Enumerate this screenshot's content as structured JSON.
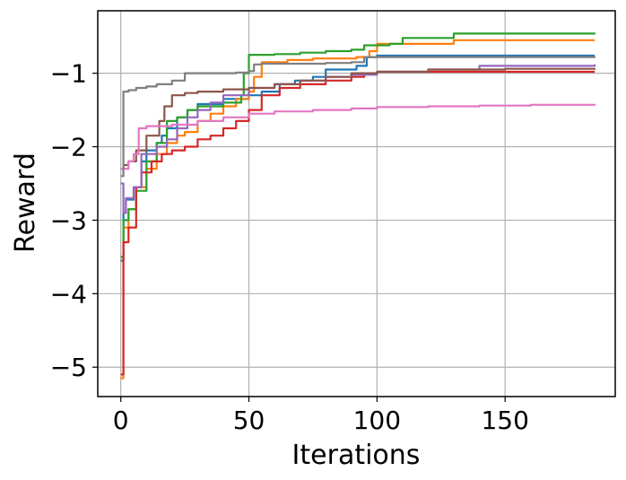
{
  "chart_data": {
    "type": "line",
    "title": "",
    "xlabel": "Iterations",
    "ylabel": "Reward",
    "xlim": [
      -9,
      193
    ],
    "ylim": [
      -5.4,
      -0.15
    ],
    "x_ticks": [
      0,
      50,
      100,
      150
    ],
    "x_tick_labels": [
      "0",
      "50",
      "100",
      "150"
    ],
    "y_ticks": [
      -5,
      -4,
      -3,
      -2,
      -1
    ],
    "y_tick_labels": [
      "−5",
      "−4",
      "−3",
      "−2",
      "−1"
    ],
    "grid": true,
    "series": [
      {
        "color": "#1f77b4",
        "points": [
          [
            0,
            -3.55
          ],
          [
            1,
            -2.9
          ],
          [
            2,
            -2.72
          ],
          [
            5,
            -2.55
          ],
          [
            8,
            -2.2
          ],
          [
            10,
            -2.05
          ],
          [
            14,
            -1.95
          ],
          [
            16,
            -1.85
          ],
          [
            18,
            -1.75
          ],
          [
            22,
            -1.6
          ],
          [
            26,
            -1.5
          ],
          [
            30,
            -1.42
          ],
          [
            40,
            -1.35
          ],
          [
            50,
            -1.3
          ],
          [
            55,
            -1.25
          ],
          [
            62,
            -1.15
          ],
          [
            68,
            -1.1
          ],
          [
            75,
            -1.05
          ],
          [
            80,
            -0.95
          ],
          [
            92,
            -0.9
          ],
          [
            96,
            -0.78
          ],
          [
            100,
            -0.76
          ],
          [
            185,
            -0.76
          ]
        ]
      },
      {
        "color": "#ff7f0e",
        "points": [
          [
            0,
            -5.15
          ],
          [
            1,
            -3.1
          ],
          [
            3,
            -2.85
          ],
          [
            6,
            -2.55
          ],
          [
            10,
            -2.3
          ],
          [
            14,
            -2.1
          ],
          [
            18,
            -1.95
          ],
          [
            22,
            -1.85
          ],
          [
            25,
            -1.8
          ],
          [
            30,
            -1.65
          ],
          [
            35,
            -1.55
          ],
          [
            40,
            -1.45
          ],
          [
            45,
            -1.35
          ],
          [
            50,
            -1.25
          ],
          [
            52,
            -1.05
          ],
          [
            55,
            -0.85
          ],
          [
            65,
            -0.82
          ],
          [
            75,
            -0.8
          ],
          [
            85,
            -0.8
          ],
          [
            92,
            -0.78
          ],
          [
            97,
            -0.7
          ],
          [
            100,
            -0.6
          ],
          [
            120,
            -0.6
          ],
          [
            130,
            -0.55
          ],
          [
            185,
            -0.55
          ]
        ]
      },
      {
        "color": "#2ca02c",
        "points": [
          [
            0,
            -3.5
          ],
          [
            1,
            -3.0
          ],
          [
            3,
            -2.85
          ],
          [
            6,
            -2.6
          ],
          [
            10,
            -2.2
          ],
          [
            14,
            -1.95
          ],
          [
            18,
            -1.65
          ],
          [
            22,
            -1.6
          ],
          [
            26,
            -1.5
          ],
          [
            30,
            -1.45
          ],
          [
            40,
            -1.4
          ],
          [
            47,
            -1.3
          ],
          [
            48,
            -1.0
          ],
          [
            50,
            -0.75
          ],
          [
            60,
            -0.74
          ],
          [
            70,
            -0.72
          ],
          [
            80,
            -0.7
          ],
          [
            90,
            -0.68
          ],
          [
            95,
            -0.62
          ],
          [
            105,
            -0.6
          ],
          [
            110,
            -0.52
          ],
          [
            130,
            -0.46
          ],
          [
            185,
            -0.45
          ]
        ]
      },
      {
        "color": "#d62728",
        "points": [
          [
            0,
            -5.1
          ],
          [
            1,
            -3.3
          ],
          [
            3,
            -3.1
          ],
          [
            6,
            -2.55
          ],
          [
            8,
            -2.35
          ],
          [
            12,
            -2.2
          ],
          [
            16,
            -2.1
          ],
          [
            20,
            -2.05
          ],
          [
            25,
            -2.0
          ],
          [
            30,
            -1.9
          ],
          [
            35,
            -1.85
          ],
          [
            40,
            -1.75
          ],
          [
            45,
            -1.65
          ],
          [
            50,
            -1.5
          ],
          [
            55,
            -1.3
          ],
          [
            62,
            -1.2
          ],
          [
            70,
            -1.15
          ],
          [
            80,
            -1.1
          ],
          [
            90,
            -1.05
          ],
          [
            95,
            -1.0
          ],
          [
            100,
            -0.98
          ],
          [
            185,
            -0.98
          ]
        ]
      },
      {
        "color": "#9467bd",
        "points": [
          [
            0,
            -2.5
          ],
          [
            1,
            -2.9
          ],
          [
            2,
            -2.7
          ],
          [
            5,
            -2.55
          ],
          [
            8,
            -2.1
          ],
          [
            14,
            -2.0
          ],
          [
            18,
            -1.9
          ],
          [
            22,
            -1.75
          ],
          [
            26,
            -1.6
          ],
          [
            30,
            -1.5
          ],
          [
            35,
            -1.4
          ],
          [
            40,
            -1.3
          ],
          [
            50,
            -1.2
          ],
          [
            60,
            -1.15
          ],
          [
            70,
            -1.1
          ],
          [
            80,
            -1.05
          ],
          [
            90,
            -1.02
          ],
          [
            100,
            -0.98
          ],
          [
            120,
            -0.95
          ],
          [
            140,
            -0.9
          ],
          [
            185,
            -0.88
          ]
        ]
      },
      {
        "color": "#8c564b",
        "points": [
          [
            0,
            -2.3
          ],
          [
            1,
            -2.25
          ],
          [
            3,
            -2.2
          ],
          [
            6,
            -2.05
          ],
          [
            10,
            -1.85
          ],
          [
            15,
            -1.65
          ],
          [
            17,
            -1.45
          ],
          [
            20,
            -1.3
          ],
          [
            25,
            -1.27
          ],
          [
            30,
            -1.25
          ],
          [
            40,
            -1.22
          ],
          [
            50,
            -1.2
          ],
          [
            60,
            -1.15
          ],
          [
            70,
            -1.1
          ],
          [
            80,
            -1.05
          ],
          [
            90,
            -1.0
          ],
          [
            100,
            -0.98
          ],
          [
            120,
            -0.95
          ],
          [
            150,
            -0.94
          ],
          [
            185,
            -0.93
          ]
        ]
      },
      {
        "color": "#e377c2",
        "points": [
          [
            0,
            -2.3
          ],
          [
            1,
            -2.3
          ],
          [
            3,
            -2.2
          ],
          [
            5,
            -2.1
          ],
          [
            7,
            -1.75
          ],
          [
            10,
            -1.72
          ],
          [
            20,
            -1.7
          ],
          [
            30,
            -1.65
          ],
          [
            40,
            -1.6
          ],
          [
            50,
            -1.55
          ],
          [
            60,
            -1.52
          ],
          [
            75,
            -1.5
          ],
          [
            90,
            -1.48
          ],
          [
            100,
            -1.46
          ],
          [
            120,
            -1.45
          ],
          [
            140,
            -1.44
          ],
          [
            160,
            -1.43
          ],
          [
            185,
            -1.42
          ]
        ]
      },
      {
        "color": "#7f7f7f",
        "points": [
          [
            0,
            -2.4
          ],
          [
            1,
            -1.25
          ],
          [
            3,
            -1.23
          ],
          [
            6,
            -1.2
          ],
          [
            10,
            -1.18
          ],
          [
            14,
            -1.15
          ],
          [
            20,
            -1.1
          ],
          [
            25,
            -1.0
          ],
          [
            45,
            -0.99
          ],
          [
            50,
            -0.97
          ],
          [
            52,
            -0.88
          ],
          [
            55,
            -0.87
          ],
          [
            60,
            -0.87
          ],
          [
            80,
            -0.86
          ],
          [
            90,
            -0.85
          ],
          [
            95,
            -0.78
          ],
          [
            185,
            -0.77
          ]
        ]
      }
    ]
  }
}
